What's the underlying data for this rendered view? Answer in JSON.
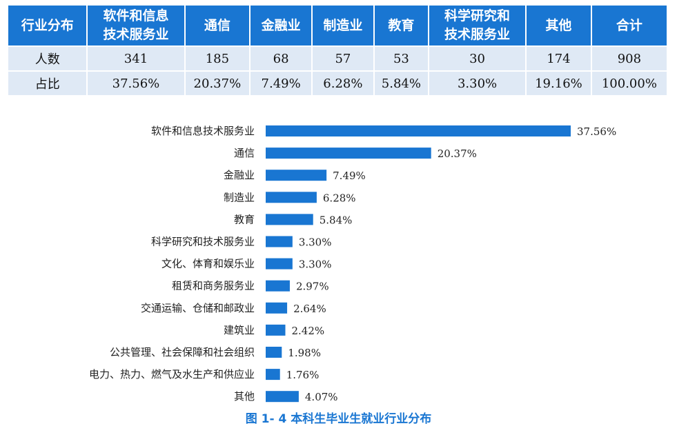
{
  "table": {
    "headers": [
      "行业分布",
      "软件和信息\n技术服务业",
      "通信",
      "金融业",
      "制造业",
      "教育",
      "科学研究和\n技术服务业",
      "其他",
      "合计"
    ],
    "rows": [
      [
        "人数",
        "341",
        "185",
        "68",
        "57",
        "53",
        "30",
        "174",
        "908"
      ],
      [
        "占比",
        "37.56%",
        "20.37%",
        "7.49%",
        "6.28%",
        "5.84%",
        "3.30%",
        "19.16%",
        "100.00%"
      ]
    ]
  },
  "chart_data": {
    "type": "bar",
    "orientation": "horizontal",
    "categories": [
      "软件和信息技术服务业",
      "通信",
      "金融业",
      "制造业",
      "教育",
      "科学研究和技术服务业",
      "文化、体育和娱乐业",
      "租赁和商务服务业",
      "交通运输、仓储和邮政业",
      "建筑业",
      "公共管理、社会保障和社会组织",
      "电力、热力、燃气及水生产和供应业",
      "其他"
    ],
    "values": [
      37.56,
      20.37,
      7.49,
      6.28,
      5.84,
      3.3,
      3.3,
      2.97,
      2.64,
      2.42,
      1.98,
      1.76,
      4.07
    ],
    "labels": [
      "37.56%",
      "20.37%",
      "7.49%",
      "6.28%",
      "5.84%",
      "3.30%",
      "3.30%",
      "2.97%",
      "2.64%",
      "2.42%",
      "1.98%",
      "1.76%",
      "4.07%"
    ],
    "bar_color": "#1976d2",
    "title": "图 1- 4    本科生毕业生就业行业分布",
    "xlim": [
      0,
      37.56
    ]
  },
  "colors": {
    "header_bg": "#1976d2",
    "cell_bg": "#dfe9f5",
    "caption": "#1976d2"
  }
}
